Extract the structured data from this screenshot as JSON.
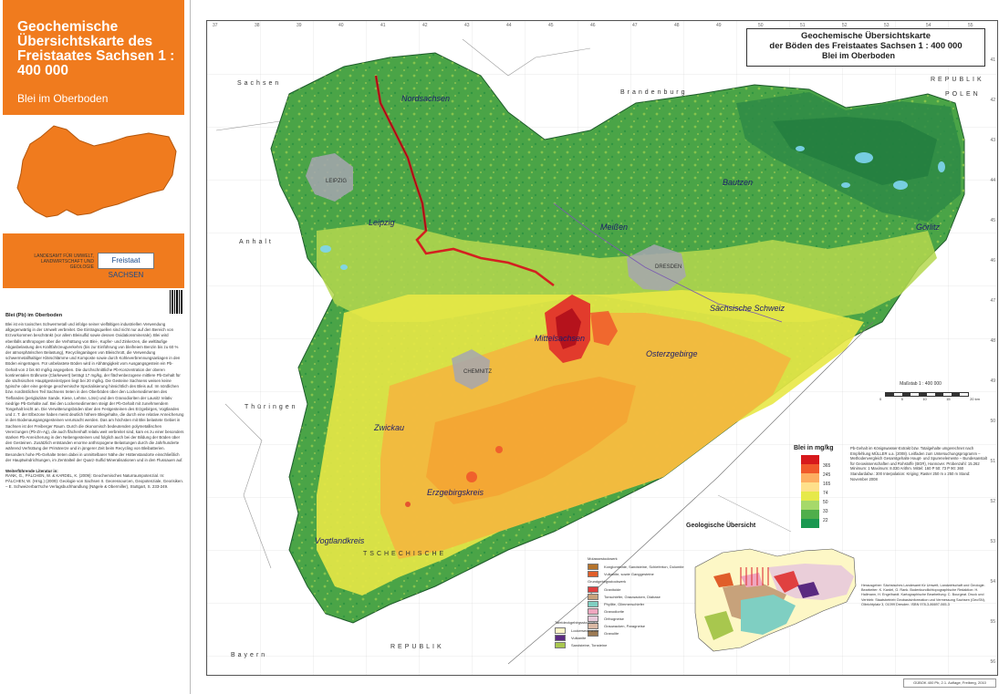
{
  "sidebar": {
    "title": "Geochemische Übersichtskarte des Freistaates Sachsen 1 : 400 000",
    "subtitle": "Blei im Oberboden",
    "agency": "LANDESAMT FÜR UMWELT, LANDWIRTSCHAFT UND GEOLOGIE",
    "agency_logo": "Freistaat SACHSEN",
    "text_heading": "Blei (Pb) im Oberboden",
    "text_body": "Blei ist ein toxisches Schwermetall und infolge seiner vielfältigen industriellen Verwendung allgegenwärtig in der Umwelt verbreitet. Die Eintragsquellen sind nicht nur auf den Bereich von Erzvorkommen beschränkt (vor allem Bleisulfid sowie dessen Oxidationsminerale). Blei wird ebenfalls anthropogen über die Verhüttung von Blei-, Kupfer- und Zinkerzen, die weltläufige Abgasbelastung des Kraftfahrzeugverkehrs (bis zur Einführung von bleifreiem Benzin bis zu 60 % der atmosphärischen Belastung), Recyclinganlagen von Bleischrott, die Verwendung schwermetallhaltiger Klärschlämme und Komposte sowie durch Kohleverbrennungsanlagen in den Böden eingetragen. Für unbelastete Böden wird in Abhängigkeit vom Ausgangsgestein ein Pb-Gehalt von 2 bis 60 mg/kg angegeben. Die durchschnittliche Pb-Konzentration der oberen kontinentalen Erdkruste (Clarkewert) beträgt 17 mg/kg, der flächenbezogene mittlere Pb-Gehalt für die sächsischen Hauptgesteinstypen liegt bei 20 mg/kg. Die Gesteine Sachsens weisen keine typische oder eine geringe geochemische Spezialisierung hinsichtlich des Bleis auf. Im nördlichen bzw. nordöstlichen Teil Sachsens treten in den Oberböden über den Lockersedimenten des Tieflandes (periglaziäre Sande, Kiese, Lehme, Löss) und den Granodioriten der Lausitz relativ niedrige Pb-Gehalte auf. Bei den Lockersedimenten steigt der Pb-Gehalt mit zunehmendem Tongehalt leicht an. Die Verwitterungsböden über den Festgesteinen des Erzgebirges, Vogtlandes und z. T. der Elbezone haben meist deutlich höhere Bleigehalte, die durch eine relative Anreicherung in den Bodenausgangsgesteinen verursacht werden. Das am höchsten mit Blei belastete Gebiet in Sachsen ist der Freiberger Raum. Durch die ökonomisch bedeutenden polymetallischen Vererzungen (Pb-Zn-Ag), die auch flächenhaft relativ weit verbreitet sind, kam es zu einer besonders starken Pb-Anreicherung in den Nebengesteinen und folglich auch bei der Bildung der Böden über den Gesteinen. Zusätzlich entstanden enorme anthropogene Belastungen durch die Jahrhunderte während Verhüttung der Primärerze und in jüngerer Zeit beim Recycling von Bleibatterien. Besonders hohe Pb-Gehalte treten dabei in unmittelbarer Nähe der Hüttenstandorte einschließlich der Hauptwindrichtungen, im Zentralteil der Quarz-Sulfid Mineralisationen und in den Flussauen auf.",
    "lit_heading": "Weiterführende Literatur in:",
    "lit_body": "RANK, G., PÄLCHEN, W. & KARDEL, K. (2009): Geochemisches Naturraumpotenzial. In: PÄLCHEN, W. (Hrsg.) (2009): Geologie von Sachsen II. Georessourcen, Geopotenziale, Georisiken. – E. Schweizerbart'sche Verlagsbuchhandlung (Nägele & Obermiller), Stuttgart, S. 233-249."
  },
  "map": {
    "title_l1": "Geochemische Übersichtskarte",
    "title_l2": "der Böden des Freistaates Sachsen 1 : 400 000",
    "title_l3": "Blei im Oberboden",
    "places": {
      "nordsachsen": "Nordsachsen",
      "leipzig_city": "LEIPZIG",
      "leipzig": "Leipzig",
      "meissen": "Meißen",
      "dresden": "DRESDEN",
      "bautzen": "Bautzen",
      "goerlitz": "Görlitz",
      "saechs_schweiz": "Sächsische Schweiz",
      "mittelsachsen": "Mittelsachsen",
      "erzgebirge": "Osterzgebirge",
      "chemnitz": "CHEMNITZ",
      "zwickau": "Zwickau",
      "erzgebirgskreis": "Erzgebirgskreis",
      "vogtlandkreis": "Vogtlandkreis"
    },
    "countries": {
      "brandenburg": "Brandenburg",
      "sachsen_anhalt": "Sachsen",
      "anhalt": "Anhalt",
      "republik": "REPUBLIK",
      "polen": "POLEN",
      "thueringen": "Thüringen",
      "tschechische": "TSCHECHISCHE",
      "republik2": "REPUBLIK",
      "bayern": "Bayern"
    },
    "scale_label": "Maßstab 1 : 400 000",
    "scale_ticks": [
      "0",
      "5",
      "10",
      "15",
      "20 km"
    ],
    "legend_title": "Blei in mg/kg",
    "legend": [
      {
        "value": "365",
        "color": "#d7191c"
      },
      {
        "value": "245",
        "color": "#f0592b"
      },
      {
        "value": "165",
        "color": "#fdae61"
      },
      {
        "value": "74",
        "color": "#fee08b"
      },
      {
        "value": "50",
        "color": "#e6e94a"
      },
      {
        "value": "33",
        "color": "#a6d96a"
      },
      {
        "value": "22",
        "color": "#4fae4b"
      },
      {
        "value": "",
        "color": "#1a9850"
      }
    ],
    "legend_meta": "Pb-Gehalt im Königswasser-Extrakt bzw. Totalgehalte umgerechnet nach Empfehlung MÜLLER u.a. (2008). Leitfaden zum Untersuchungsprogramm – Methodenvergleich Gesamtgehalte Haupt- und Spurenelemente – Bundesanstalt für Geowissenschaften und Rohstoffe (BGR), Hannover. Probenzahl: 15.262 Minimum: 1 Maximum: 8.030 Arithm. Mittel: 160 P 50: 73 P 90: 360 Standardabw.: 300 Interpolation: Kriging; Raster 250 m x 250 m Stand: November 2008",
    "geo_title": "Geologische Übersicht",
    "geo_groups": [
      {
        "head": "Molassestockwerk",
        "items": [
          {
            "name": "Konglomerate, Sandsteine, Schieferton, Dolomite",
            "color": "#b5742c"
          },
          {
            "name": "Vulkanite, sowie Ganggesteine",
            "color": "#e05e2a"
          }
        ]
      },
      {
        "head": "Grundgebirgsstockwerk",
        "items": [
          {
            "name": "Granitoide",
            "color": "#e04040"
          },
          {
            "name": "Tonschiefer, Grauwacken, Diabase",
            "color": "#c7a27b"
          },
          {
            "name": "Phyllite, Glimmerschiefer",
            "color": "#7fcfc2"
          },
          {
            "name": "Granodiorite",
            "color": "#f0a7c0"
          },
          {
            "name": "Orthogneise",
            "color": "#e8c9da"
          },
          {
            "name": "Grauwacken, Paragneise",
            "color": "#d9b8a4"
          },
          {
            "name": "Granulite",
            "color": "#9c7a54"
          }
        ]
      }
    ],
    "geo_groups2": {
      "head": "Tafeldeckgebirgsstockwerk",
      "items": [
        {
          "name": "Lockersedimente",
          "color": "#fdf7c6"
        },
        {
          "name": "Vulkanite",
          "color": "#5a2a80"
        },
        {
          "name": "Sandsteine, Tonsteine",
          "color": "#a8c74e"
        }
      ]
    },
    "credits": "Herausgeber: Sächsisches Landesamt für Umwelt, Landwirtschaft und Geologie. Bearbeiter: K. Kardel, G. Rank. Bodenkundlichtopographische Redaktion: H. Hallmann, H. Engelhardt. Kartographische Bearbeitung: C. Bourgeat. Druck und Vertrieb: Staatsbetrieb Geobasisinformation und Vermessung Sachsen (GeoSN), Olbrichtplatz 3, 01099 Dresden. ISBN 978-3-86697-065-3",
    "footer_ref": "GÜBOK 400 Pb, 2.1. Auflage, Freiberg, 2010",
    "coords_top": [
      "37",
      "38",
      "39",
      "40",
      "41",
      "42",
      "43",
      "44",
      "45",
      "46",
      "47",
      "48",
      "49",
      "50",
      "51",
      "52",
      "53",
      "54",
      "55"
    ],
    "coords_side": [
      "41",
      "42",
      "43",
      "44",
      "45",
      "46",
      "47",
      "48",
      "49",
      "50",
      "51",
      "52",
      "53",
      "54",
      "55",
      "56"
    ]
  }
}
